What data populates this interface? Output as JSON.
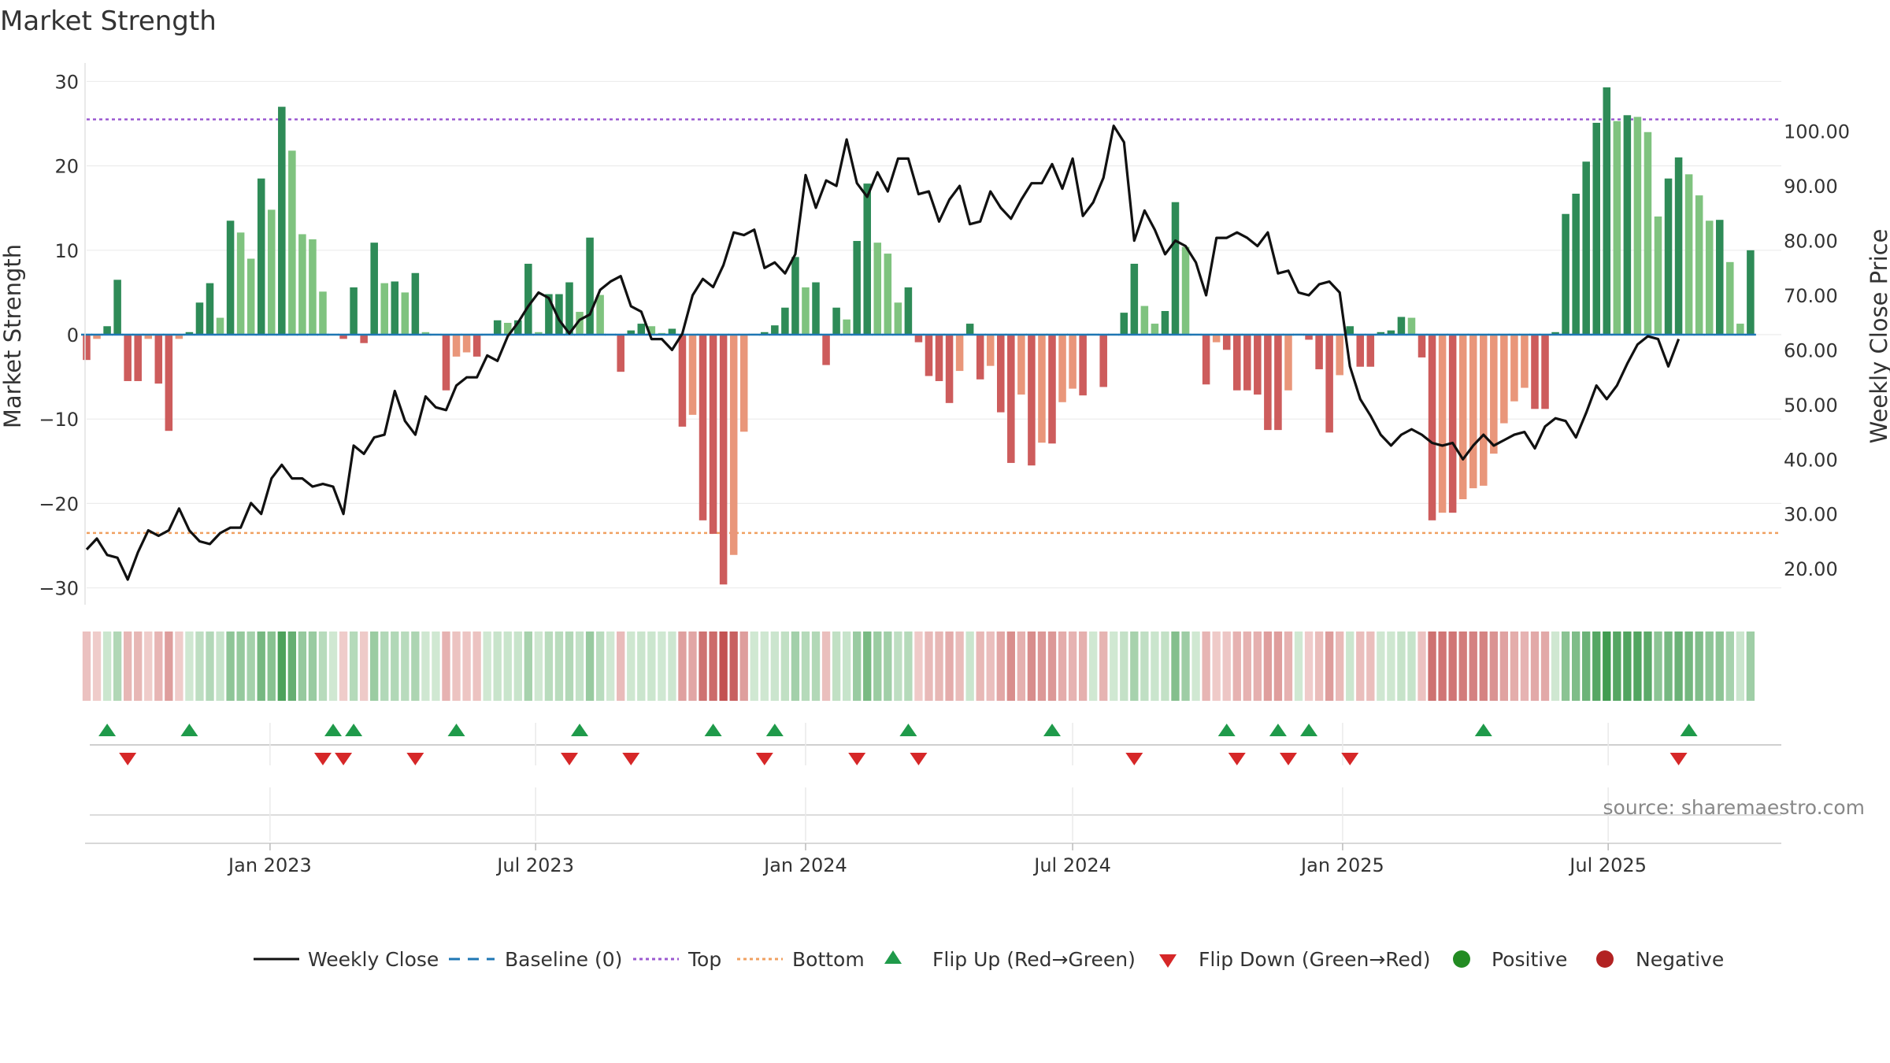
{
  "chart_data": {
    "type": "bar",
    "title": "Market Strength",
    "ylabel_left": "Market Strength",
    "ylabel_right": "Weekly Close Price",
    "ylim_left": [
      -32,
      32
    ],
    "ylim_right": [
      13.4,
      112.2
    ],
    "yticks_left": [
      -30,
      -20,
      -10,
      0,
      10,
      20,
      30
    ],
    "yticks_left_labels": [
      "−30",
      "−20",
      "−10",
      "0",
      "10",
      "20",
      "30"
    ],
    "yticks_right": [
      20,
      30,
      40,
      50,
      60,
      70,
      80,
      90,
      100
    ],
    "yticks_right_labels": [
      "20.00",
      "30.00",
      "40.00",
      "50.00",
      "60.00",
      "70.00",
      "80.00",
      "90.00",
      "100.00"
    ],
    "x_start": "2022-08-29",
    "x_end": "2025-10-27",
    "xticks": [
      "2023-01-01",
      "2023-07-01",
      "2024-01-01",
      "2024-07-01",
      "2025-01-01",
      "2025-07-01"
    ],
    "xtick_labels": [
      "Jan 2023",
      "Jul 2023",
      "Jan 2024",
      "Jul 2024",
      "Jan 2025",
      "Jul 2025"
    ],
    "top_threshold": 25.5,
    "bottom_threshold": -23.5,
    "strength": [
      -3.0,
      -0.5,
      1.0,
      6.5,
      -5.5,
      -5.5,
      -0.5,
      -5.8,
      -11.4,
      -0.5,
      0.3,
      3.8,
      6.1,
      2.0,
      13.5,
      12.1,
      9.0,
      18.5,
      14.8,
      27.0,
      21.8,
      11.9,
      11.3,
      5.1,
      0.1,
      -0.5,
      5.6,
      -1.0,
      10.9,
      6.1,
      6.3,
      5.0,
      7.3,
      0.3,
      0.1,
      -6.6,
      -2.6,
      -2.1,
      -2.6,
      0.1,
      1.7,
      1.4,
      1.7,
      8.4,
      0.3,
      4.8,
      4.8,
      6.2,
      2.7,
      11.5,
      4.7,
      0.1,
      -4.4,
      0.5,
      1.3,
      1.0,
      0.2,
      0.7,
      -10.9,
      -9.5,
      -22.0,
      -23.6,
      -29.6,
      -26.1,
      -11.5,
      0.1,
      0.3,
      1.1,
      3.2,
      9.2,
      5.6,
      6.2,
      -3.6,
      3.2,
      1.8,
      11.1,
      17.9,
      10.9,
      9.6,
      3.8,
      5.6,
      -0.9,
      -4.9,
      -5.5,
      -8.1,
      -4.3,
      1.3,
      -5.3,
      -3.7,
      -9.2,
      -15.2,
      -7.1,
      -15.5,
      -12.8,
      -12.9,
      -8.0,
      -6.4,
      -7.2,
      0.1,
      -6.2,
      0.1,
      2.6,
      8.4,
      3.4,
      1.3,
      2.8,
      15.7,
      10.4,
      0.1,
      -5.9,
      -0.9,
      -1.8,
      -6.6,
      -6.6,
      -7.1,
      -11.3,
      -11.3,
      -6.6,
      0.1,
      -0.6,
      -4.1,
      -11.6,
      -4.8,
      1.0,
      -3.8,
      -3.8,
      0.3,
      0.5,
      2.1,
      2.0,
      -2.7,
      -22.0,
      -21.1,
      -21.1,
      -19.5,
      -18.2,
      -17.9,
      -14.1,
      -10.5,
      -7.9,
      -6.3,
      -8.8,
      -8.8,
      0.3,
      14.3,
      16.7,
      20.5,
      25.1,
      29.3,
      25.3,
      26.0,
      25.8,
      24.0,
      14.0,
      18.5,
      21.0,
      19.0,
      16.5,
      13.5,
      13.6,
      8.6,
      1.3,
      10.0
    ],
    "close": [
      23.5,
      25.5,
      22.5,
      22.0,
      18.0,
      23.0,
      27.0,
      26.0,
      27.0,
      31.0,
      27.0,
      25.0,
      24.5,
      26.5,
      27.5,
      27.5,
      32.0,
      30.0,
      36.5,
      39.0,
      36.5,
      36.5,
      35.0,
      35.5,
      35.0,
      30.0,
      42.5,
      41.0,
      44.0,
      44.5,
      52.5,
      47.0,
      44.5,
      51.5,
      49.5,
      49.0,
      53.5,
      55.0,
      55.0,
      59.0,
      58.0,
      62.5,
      65.0,
      68.0,
      70.5,
      69.5,
      65.5,
      63.0,
      65.5,
      66.5,
      71.0,
      72.5,
      73.5,
      68.0,
      67.0,
      62.0,
      62.0,
      60.0,
      63.0,
      70.0,
      73.0,
      71.5,
      75.5,
      81.5,
      81.0,
      82.0,
      75.0,
      76.0,
      74.0,
      77.5,
      92.0,
      86.0,
      91.0,
      90.0,
      98.5,
      90.5,
      88.0,
      92.5,
      89.0,
      95.0,
      95.0,
      88.5,
      89.0,
      83.5,
      87.5,
      90.0,
      83.0,
      83.5,
      89.0,
      86.0,
      84.0,
      87.5,
      90.5,
      90.5,
      94.0,
      89.5,
      95.0,
      84.5,
      87.0,
      91.5,
      101.0,
      98.0,
      80.0,
      85.5,
      82.0,
      77.5,
      80.0,
      79.0,
      76.0,
      70.0,
      80.5,
      80.5,
      81.5,
      80.5,
      79.0,
      81.5,
      74.0,
      74.5,
      70.5,
      70.0,
      72.0,
      72.5,
      70.5,
      57.0,
      51.0,
      48.0,
      44.5,
      42.5,
      44.5,
      45.5,
      44.5,
      43.0,
      42.5,
      43.0,
      40.0,
      42.5,
      44.5,
      42.5,
      43.5,
      44.5,
      45.0,
      42.0,
      46.0,
      47.5,
      47.0,
      44.0,
      48.5,
      53.5,
      51.0,
      53.5,
      57.5,
      61.0,
      62.5,
      62.0,
      57.0,
      62.0
    ],
    "flip_up_weeks": [
      2,
      10,
      24,
      26,
      36,
      48,
      61,
      67,
      80,
      94,
      111,
      116,
      119,
      136,
      156
    ],
    "flip_down_weeks": [
      4,
      23,
      25,
      32,
      47,
      53,
      66,
      75,
      81,
      102,
      112,
      117,
      123,
      155
    ],
    "legend": {
      "weekly_close": "Weekly Close",
      "baseline": "Baseline (0)",
      "top": "Top",
      "bottom": "Bottom",
      "flip_up": "Flip Up (Red→Green)",
      "flip_down": "Flip Down (Green→Red)",
      "positive": "Positive",
      "negative": "Negative"
    },
    "source": "source: sharemaestro.com",
    "colors": {
      "positive_strong": "#2e8b57",
      "positive_weak": "#7fc37f",
      "negative_strong": "#cd5c5c",
      "negative_weak": "#e9967a",
      "close_line": "#111111",
      "baseline": "#1f77b4",
      "top_line": "#9b59d0",
      "bottom_line": "#f0a060",
      "flip_up": "#1f9a4a",
      "flip_down": "#d62728",
      "legend_positive": "#228b22",
      "legend_negative": "#b22222"
    }
  }
}
